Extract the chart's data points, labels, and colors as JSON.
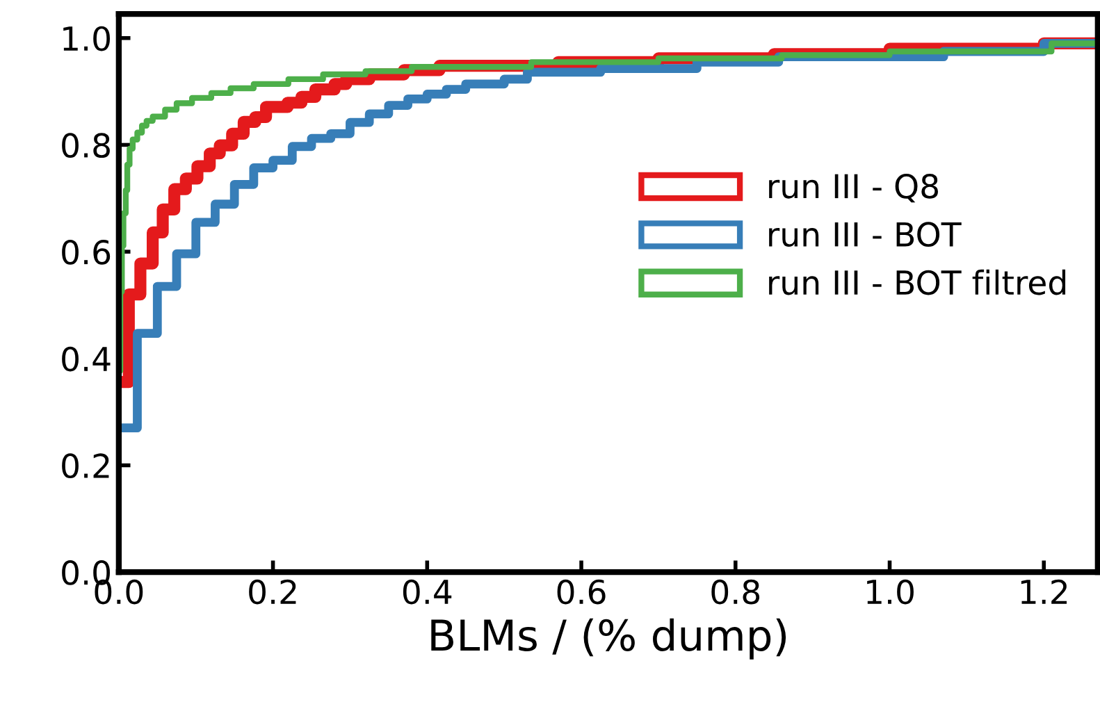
{
  "chart_data": {
    "type": "step",
    "xlabel": "BLMs / (% dump)",
    "xlim": [
      0,
      1.27
    ],
    "ylim": [
      0,
      1.045
    ],
    "xticks": [
      {
        "value": 0,
        "label": "0.0"
      },
      0.2,
      0.4,
      0.6,
      0.8,
      {
        "value": 1,
        "label": "1.0"
      },
      1.2
    ],
    "yticks": [
      {
        "value": 0,
        "label": "0.0"
      },
      0.2,
      0.4,
      0.6,
      0.8,
      {
        "value": 1,
        "label": "1.0"
      }
    ],
    "grid": false,
    "legend": "right",
    "marker": "none",
    "line_style": "solid",
    "series": [
      {
        "name": "run III - Q8",
        "color": "#e41a1c",
        "x": [
          0,
          0.013,
          0.028,
          0.044,
          0.057,
          0.072,
          0.087,
          0.102,
          0.118,
          0.131,
          0.147,
          0.162,
          0.177,
          0.191,
          0.219,
          0.237,
          0.255,
          0.28,
          0.295,
          0.325,
          0.37,
          0.416,
          0.57,
          0.7,
          0.85,
          1.0,
          1.2,
          1.27
        ],
        "values": [
          0.356,
          0.52,
          0.578,
          0.636,
          0.679,
          0.717,
          0.737,
          0.76,
          0.784,
          0.799,
          0.821,
          0.843,
          0.852,
          0.871,
          0.879,
          0.89,
          0.904,
          0.914,
          0.923,
          0.932,
          0.94,
          0.948,
          0.955,
          0.962,
          0.97,
          0.98,
          0.99,
          0.99
        ]
      },
      {
        "name": "run III - BOT",
        "color": "#377eb8",
        "x": [
          0,
          0.024,
          0.05,
          0.075,
          0.1,
          0.125,
          0.15,
          0.175,
          0.2,
          0.225,
          0.25,
          0.275,
          0.3,
          0.325,
          0.35,
          0.375,
          0.4,
          0.425,
          0.45,
          0.5,
          0.53,
          0.625,
          0.75,
          0.856,
          1.07,
          1.2,
          1.27
        ],
        "values": [
          0.27,
          0.447,
          0.535,
          0.596,
          0.655,
          0.689,
          0.726,
          0.757,
          0.771,
          0.797,
          0.812,
          0.821,
          0.842,
          0.858,
          0.874,
          0.886,
          0.895,
          0.904,
          0.914,
          0.923,
          0.936,
          0.943,
          0.955,
          0.965,
          0.975,
          0.99,
          0.99
        ]
      },
      {
        "name": "run III - BOT filtred",
        "color": "#4daf4a",
        "x": [
          0,
          0.002,
          0.004,
          0.006,
          0.009,
          0.011,
          0.014,
          0.018,
          0.024,
          0.03,
          0.036,
          0.044,
          0.06,
          0.075,
          0.095,
          0.12,
          0.145,
          0.175,
          0.22,
          0.265,
          0.32,
          0.38,
          0.535,
          0.7,
          0.86,
          1.0,
          1.21,
          1.27
        ],
        "values": [
          0.377,
          0.525,
          0.611,
          0.672,
          0.715,
          0.763,
          0.793,
          0.81,
          0.823,
          0.836,
          0.845,
          0.853,
          0.866,
          0.878,
          0.888,
          0.897,
          0.906,
          0.914,
          0.923,
          0.932,
          0.938,
          0.946,
          0.955,
          0.962,
          0.968,
          0.975,
          0.99,
          0.99
        ]
      }
    ]
  }
}
